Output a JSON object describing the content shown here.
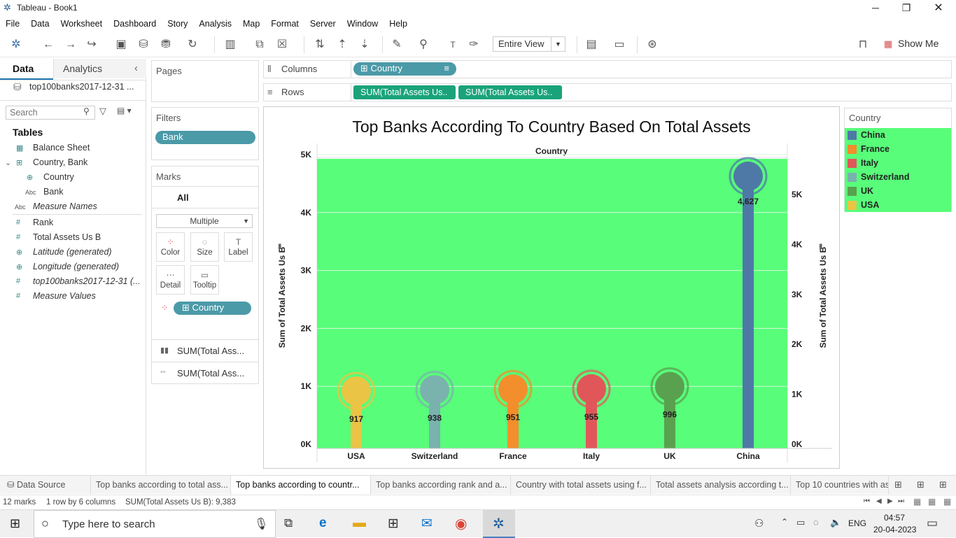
{
  "window": {
    "title": "Tableau - Book1"
  },
  "menu": [
    "File",
    "Data",
    "Worksheet",
    "Dashboard",
    "Story",
    "Analysis",
    "Map",
    "Format",
    "Server",
    "Window",
    "Help"
  ],
  "toolbar": {
    "fit_value": "Entire View",
    "show_me_label": "Show Me"
  },
  "data_pane": {
    "tab_data": "Data",
    "tab_analytics": "Analytics",
    "datasource": "top100banks2017-12-31 ...",
    "search_placeholder": "Search",
    "tables_heading": "Tables",
    "fields": [
      {
        "label": "Balance Sheet",
        "icon": "table-icon",
        "italic": false
      },
      {
        "label": "Country, Bank",
        "icon": "hierarchy-icon",
        "italic": false
      },
      {
        "label": "Country",
        "icon": "globe-icon",
        "italic": false
      },
      {
        "label": "Bank",
        "icon": "abc-icon",
        "italic": false
      },
      {
        "label": "Measure Names",
        "icon": "abc-icon",
        "italic": true
      },
      {
        "label": "Rank",
        "icon": "hash-icon",
        "italic": false
      },
      {
        "label": "Total Assets Us B",
        "icon": "hash-icon",
        "italic": false
      },
      {
        "label": "Latitude (generated)",
        "icon": "globe-icon",
        "italic": true
      },
      {
        "label": "Longitude (generated)",
        "icon": "globe-icon",
        "italic": true
      },
      {
        "label": "top100banks2017-12-31 (...",
        "icon": "hash-icon",
        "italic": true
      },
      {
        "label": "Measure Values",
        "icon": "hash-icon",
        "italic": true
      }
    ]
  },
  "pages_card": {
    "title": "Pages"
  },
  "filters_card": {
    "title": "Filters",
    "pill": "Bank"
  },
  "marks_card": {
    "title": "Marks",
    "all_label": "All",
    "mark_type": "Multiple",
    "buttons": [
      "Color",
      "Size",
      "Label",
      "Detail",
      "Tooltip"
    ],
    "color_pill": "Country",
    "measure_1": "SUM(Total Ass...",
    "measure_2": "SUM(Total Ass..."
  },
  "shelves": {
    "columns_label": "Columns",
    "columns_pill": "Country",
    "rows_label": "Rows",
    "rows_pill_1": "SUM(Total Assets Us..",
    "rows_pill_2": "SUM(Total Assets Us.."
  },
  "chart_data": {
    "type": "bar",
    "title": "Top Banks According To Country Based On Total Assets",
    "column_header": "Country",
    "ylabel": "Sum of Total Assets Us B",
    "ylabel_right": "Sum of Total Assets Us B",
    "ylim": [
      0,
      5000
    ],
    "ylim_right": [
      0,
      5800
    ],
    "y_ticks": [
      "0K",
      "1K",
      "2K",
      "3K",
      "4K",
      "5K"
    ],
    "y_ticks_right": [
      "0K",
      "1K",
      "2K",
      "3K",
      "4K",
      "5K"
    ],
    "categories": [
      "USA",
      "Switzerland",
      "France",
      "Italy",
      "UK",
      "China"
    ],
    "values": [
      917,
      938,
      951,
      955,
      996,
      4627
    ],
    "value_labels": [
      "917",
      "938",
      "951",
      "955",
      "996",
      "4,627"
    ],
    "colors": [
      "#eac445",
      "#7ab2ad",
      "#f28e2b",
      "#e15759",
      "#59a14f",
      "#4e79a7"
    ],
    "background": "#58fd7a",
    "grid": true
  },
  "legend": {
    "title": "Country",
    "items": [
      {
        "label": "China",
        "color": "#4e79a7"
      },
      {
        "label": "France",
        "color": "#f28e2b"
      },
      {
        "label": "Italy",
        "color": "#e15759"
      },
      {
        "label": "Switzerland",
        "color": "#7ab2ad"
      },
      {
        "label": "UK",
        "color": "#59a14f"
      },
      {
        "label": "USA",
        "color": "#eac445"
      }
    ]
  },
  "sheet_tabs": {
    "datasource": "Data Source",
    "tabs": [
      "Top banks according to total ass...",
      "Top banks according to countr...",
      "Top banks according rank and a...",
      "Country with total assets using f...",
      "Total assets analysis according t...",
      "Top 10 countries with as"
    ]
  },
  "status": {
    "marks": "12 marks",
    "layout": "1 row by 6 columns",
    "sum": "SUM(Total Assets Us B): 9,383"
  },
  "taskbar": {
    "search_placeholder": "Type here to search",
    "lang": "ENG",
    "time": "04:57",
    "date": "20-04-2023"
  }
}
